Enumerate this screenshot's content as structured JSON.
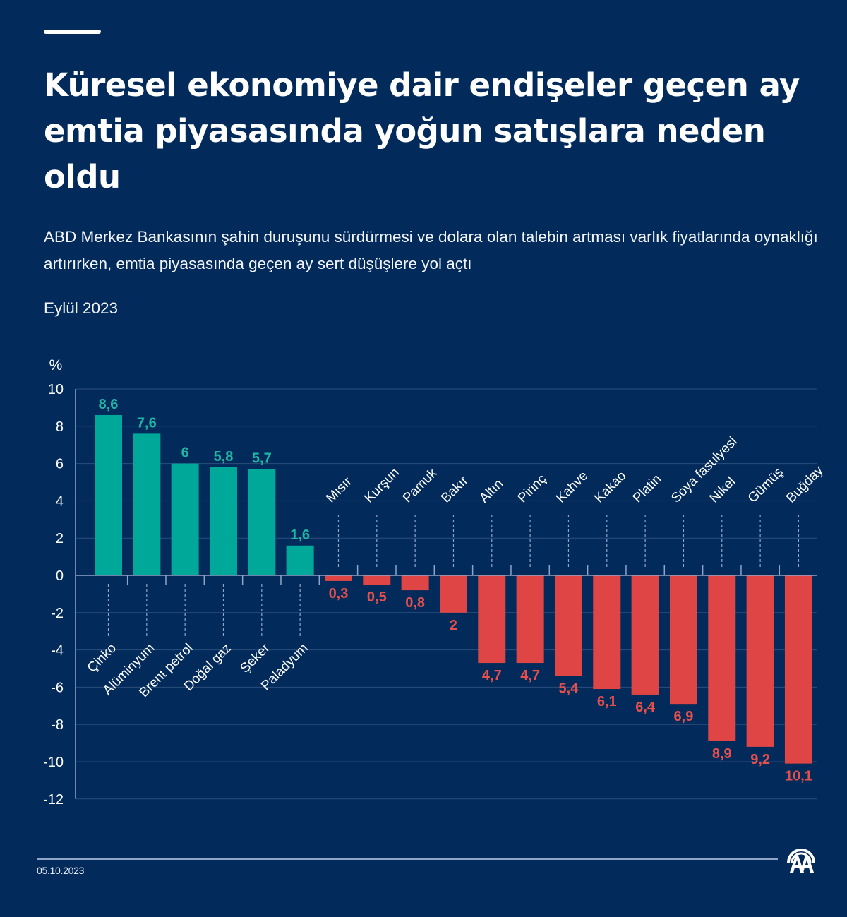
{
  "header": {
    "title": "Küresel ekonomiye dair endişeler geçen ay emtia piyasasında yoğun satışlara neden oldu",
    "subtitle": "ABD Merkez Bankasının şahin duruşunu sürdürmesi ve dolara olan talebin artması varlık fiyatlarında oynaklığı artırırken, emtia piyasasında geçen ay sert düşüşlere yol açtı",
    "period": "Eylül 2023"
  },
  "footer": {
    "date": "05.10.2023",
    "logo": "AA"
  },
  "colors": {
    "background": "#022a5a",
    "positive": "#00a89a",
    "positive_label": "#1fb6a6",
    "negative": "#e04545",
    "negative_label": "#e5504c",
    "grid": "#2c4f7c",
    "axis": "#8fa5c8"
  },
  "chart_data": {
    "type": "bar",
    "title": "Küresel ekonomiye dair endişeler geçen ay emtia piyasasında yoğun satışlara neden oldu",
    "ylabel": "%",
    "xlabel": "",
    "ylim": [
      -12,
      10
    ],
    "yticks": [
      10,
      8,
      6,
      4,
      2,
      0,
      -2,
      -4,
      -6,
      -8,
      -10,
      -12
    ],
    "grid": true,
    "categories": [
      "Çinko",
      "Alüminyum",
      "Brent petrol",
      "Doğal gaz",
      "Şeker",
      "Paladyum",
      "Mısır",
      "Kurşun",
      "Pamuk",
      "Bakır",
      "Altın",
      "Pirinç",
      "Kahve",
      "Kakao",
      "Platin",
      "Soya fasulyesi",
      "Nikel",
      "Gümüş",
      "Buğday"
    ],
    "values": [
      8.6,
      7.6,
      6,
      5.8,
      5.7,
      1.6,
      -0.3,
      -0.5,
      -0.8,
      -2,
      -4.7,
      -4.7,
      -5.4,
      -6.1,
      -6.4,
      -6.9,
      -8.9,
      -9.2,
      -10.1
    ],
    "value_labels": [
      "8,6",
      "7,6",
      "6",
      "5,8",
      "5,7",
      "1,6",
      "0,3",
      "0,5",
      "0,8",
      "2",
      "4,7",
      "4,7",
      "5,4",
      "6,1",
      "6,4",
      "6,9",
      "8,9",
      "9,2",
      "10,1"
    ]
  }
}
